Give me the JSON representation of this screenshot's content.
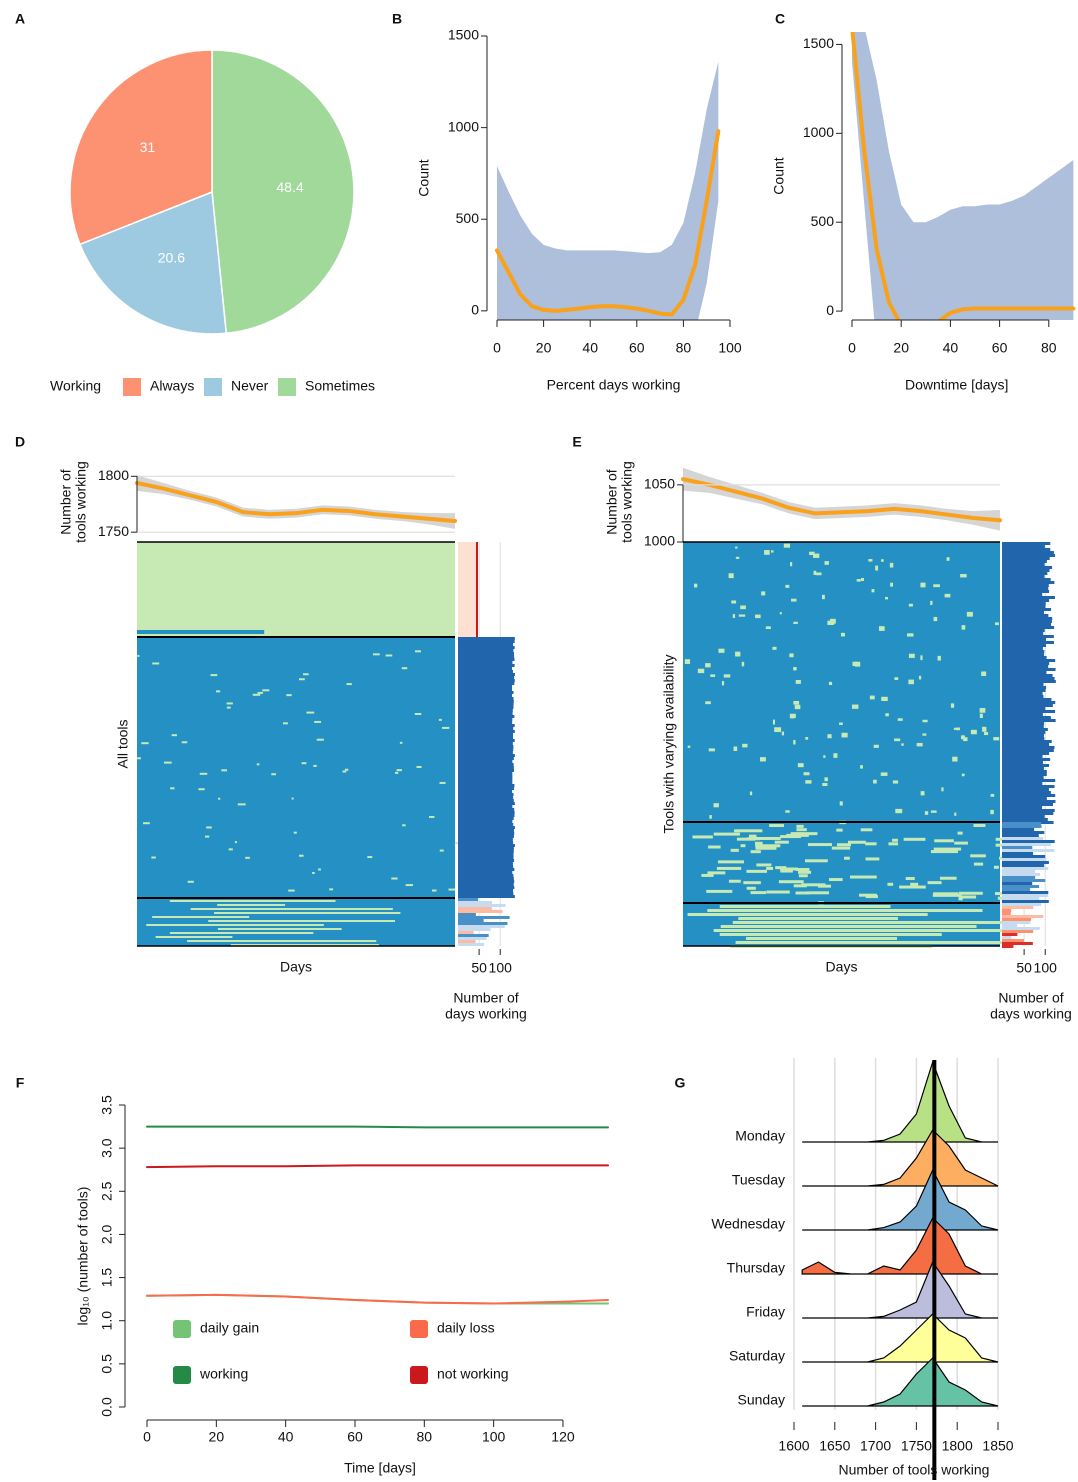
{
  "chart_data": [
    {
      "type": "pie",
      "panel": "A",
      "legend_title": "Working",
      "categories": [
        "Always",
        "Never",
        "Sometimes"
      ],
      "values": [
        31,
        20.6,
        48.4
      ],
      "colors": [
        "#fc9272",
        "#9ecae1",
        "#a1d99b"
      ]
    },
    {
      "type": "line",
      "panel": "B",
      "xlabel": "Percent days working",
      "ylabel": "Count",
      "x": [
        0,
        5,
        10,
        15,
        20,
        25,
        30,
        35,
        40,
        45,
        50,
        55,
        60,
        65,
        70,
        75,
        80,
        85,
        90,
        95
      ],
      "series": [
        {
          "color": "#f9a11b",
          "values": [
            330,
            210,
            90,
            25,
            5,
            0,
            5,
            12,
            20,
            25,
            25,
            20,
            12,
            0,
            -15,
            -20,
            60,
            250,
            600,
            980
          ]
        }
      ],
      "band": {
        "color": "#a9bcd9",
        "upper": [
          790,
          650,
          520,
          420,
          360,
          340,
          330,
          330,
          330,
          330,
          330,
          325,
          320,
          315,
          320,
          360,
          480,
          750,
          1100,
          1360
        ],
        "lower": [
          -130,
          -100,
          -80,
          -70,
          -80,
          -90,
          -100,
          -100,
          -100,
          -100,
          -100,
          -100,
          -110,
          -120,
          -140,
          -160,
          -150,
          -120,
          150,
          600
        ]
      },
      "xlim": [
        0,
        100
      ],
      "ylim": [
        -50,
        1500
      ],
      "xticks": [
        0,
        20,
        40,
        60,
        80,
        100
      ],
      "yticks": [
        0,
        500,
        1000,
        1500
      ]
    },
    {
      "type": "line",
      "panel": "C",
      "xlabel": "Downtime [days]",
      "ylabel": "Count",
      "x": [
        0,
        5,
        10,
        15,
        20,
        25,
        30,
        35,
        40,
        45,
        50,
        55,
        60,
        65,
        70,
        75,
        80,
        85,
        90
      ],
      "series": [
        {
          "color": "#f9a11b",
          "values": [
            1600,
            900,
            350,
            50,
            -80,
            -150,
            -120,
            -60,
            -10,
            10,
            15,
            15,
            15,
            15,
            15,
            15,
            15,
            15,
            15
          ]
        }
      ],
      "band": {
        "color": "#a9bcd9",
        "upper": [
          1600,
          1600,
          1300,
          900,
          600,
          500,
          500,
          530,
          570,
          590,
          590,
          600,
          600,
          620,
          650,
          700,
          750,
          800,
          850
        ],
        "lower": [
          1400,
          600,
          -200,
          -500,
          -700,
          -700,
          -600,
          -400,
          -250,
          -150,
          -100,
          -80,
          -70,
          -60,
          -60,
          -60,
          -60,
          -60,
          -60
        ]
      },
      "xlim": [
        0,
        90
      ],
      "ylim": [
        -50,
        1570
      ],
      "xticks": [
        0,
        20,
        40,
        60,
        80
      ],
      "yticks": [
        0,
        500,
        1000,
        1500
      ]
    },
    {
      "type": "line",
      "panel": "D",
      "ylabel": [
        "Number of",
        "tools working"
      ],
      "series": [
        {
          "color": "#f9a11b",
          "values": [
            1794,
            1789,
            1783,
            1777,
            1768,
            1766,
            1767,
            1770,
            1769,
            1766,
            1764,
            1762,
            1760
          ]
        }
      ],
      "band": {
        "color": "#d3d3d3",
        "upper": [
          1801,
          1794,
          1787,
          1781,
          1772,
          1770,
          1771,
          1774,
          1773,
          1770,
          1768,
          1767,
          1767
        ],
        "lower": [
          1787,
          1784,
          1779,
          1773,
          1764,
          1762,
          1763,
          1766,
          1765,
          1762,
          1760,
          1757,
          1753
        ]
      },
      "ylim": [
        1743,
        1811
      ],
      "yticks": [
        1750,
        1800
      ],
      "grid": true,
      "heatmap_xlabel": "Days",
      "heatmap_ylabel": "All tools",
      "side_label": [
        "Number of",
        "days working"
      ],
      "side_xlim": [
        0,
        135
      ],
      "side_xticks": [
        50,
        100
      ]
    },
    {
      "type": "line",
      "panel": "E",
      "ylabel": [
        "Number of",
        "tools working"
      ],
      "series": [
        {
          "color": "#f9a11b",
          "values": [
            1055,
            1050,
            1044,
            1038,
            1030,
            1025,
            1026,
            1027,
            1029,
            1027,
            1024,
            1021,
            1019
          ]
        }
      ],
      "band": {
        "color": "#d3d3d3",
        "upper": [
          1065,
          1057,
          1050,
          1043,
          1035,
          1030,
          1031,
          1032,
          1034,
          1032,
          1029,
          1027,
          1028
        ],
        "lower": [
          1045,
          1043,
          1038,
          1033,
          1025,
          1020,
          1021,
          1022,
          1024,
          1022,
          1019,
          1015,
          1010
        ]
      },
      "ylim": [
        1000,
        1070
      ],
      "yticks": [
        1000,
        1050
      ],
      "grid": true,
      "heatmap_xlabel": "Days",
      "heatmap_ylabel": "Tools with varying availability",
      "side_label": [
        "Number of",
        "days working"
      ],
      "side_xlim": [
        0,
        135
      ],
      "side_xticks": [
        50,
        100
      ]
    },
    {
      "type": "line",
      "panel": "F",
      "xlabel": "Time [days]",
      "ylabel": "log₁₀ (number of tools)",
      "x": [
        0,
        20,
        40,
        60,
        80,
        100,
        120,
        133
      ],
      "series": [
        {
          "name": "daily gain",
          "color": "#74c476",
          "values": [
            1.29,
            1.3,
            1.28,
            1.24,
            1.21,
            1.2,
            1.2,
            1.2
          ]
        },
        {
          "name": "daily loss",
          "color": "#fb6a4a",
          "values": [
            1.29,
            1.3,
            1.28,
            1.24,
            1.21,
            1.2,
            1.22,
            1.24
          ]
        },
        {
          "name": "working",
          "color": "#238b45",
          "values": [
            3.25,
            3.25,
            3.25,
            3.25,
            3.24,
            3.24,
            3.24,
            3.24
          ]
        },
        {
          "name": "not working",
          "color": "#cb181d",
          "values": [
            2.78,
            2.79,
            2.79,
            2.8,
            2.8,
            2.8,
            2.8,
            2.8
          ]
        }
      ],
      "xlim": [
        -5,
        140
      ],
      "ylim": [
        0,
        3.5
      ],
      "xticks": [
        0,
        20,
        40,
        60,
        80,
        100,
        120
      ],
      "yticks": [
        {
          "value": 0,
          "label": "0.0"
        },
        0.5,
        {
          "value": 1,
          "label": "1.0"
        },
        1.5,
        {
          "value": 2,
          "label": "2.0"
        },
        2.5,
        {
          "value": 3,
          "label": "3.0"
        },
        3.5
      ]
    },
    {
      "type": "ridgeline",
      "panel": "G",
      "xlabel": "Number of tools working",
      "categories": [
        "Monday",
        "Tuesday",
        "Wednesday",
        "Thursday",
        "Friday",
        "Saturday",
        "Sunday"
      ],
      "x": [
        1610,
        1630,
        1650,
        1670,
        1690,
        1710,
        1730,
        1750,
        1770,
        1790,
        1810,
        1830,
        1850
      ],
      "series": [
        {
          "color": "#b8e186",
          "values": [
            0,
            0,
            0,
            0,
            0,
            0.02,
            0.1,
            0.35,
            1.0,
            0.45,
            0.05,
            0,
            0
          ]
        },
        {
          "color": "#fdae61",
          "values": [
            0,
            0,
            0,
            0,
            0,
            0.02,
            0.1,
            0.35,
            0.7,
            0.5,
            0.2,
            0.1,
            0
          ]
        },
        {
          "color": "#74a9cf",
          "values": [
            0,
            0,
            0,
            0,
            0,
            0.03,
            0.1,
            0.3,
            0.75,
            0.35,
            0.25,
            0.05,
            0
          ]
        },
        {
          "color": "#f46d43",
          "values": [
            0.05,
            0.15,
            0.02,
            0,
            0,
            0.1,
            0.05,
            0.3,
            0.7,
            0.5,
            0.1,
            0,
            0
          ]
        },
        {
          "color": "#bcbddc",
          "values": [
            0,
            0,
            0,
            0,
            0,
            0.02,
            0.1,
            0.2,
            0.7,
            0.4,
            0.05,
            0,
            0
          ]
        },
        {
          "color": "#ffff99",
          "values": [
            0,
            0,
            0,
            0,
            0,
            0.05,
            0.2,
            0.4,
            0.6,
            0.4,
            0.3,
            0.05,
            0
          ]
        },
        {
          "color": "#66c2a4",
          "values": [
            0,
            0,
            0,
            0,
            0,
            0.05,
            0.15,
            0.4,
            0.6,
            0.3,
            0.2,
            0.05,
            0
          ]
        }
      ],
      "xlim": [
        1600,
        1850
      ],
      "xticks": [
        1600,
        1650,
        1700,
        1750,
        1800,
        1850
      ],
      "vline": 1772,
      "grid": true
    }
  ]
}
